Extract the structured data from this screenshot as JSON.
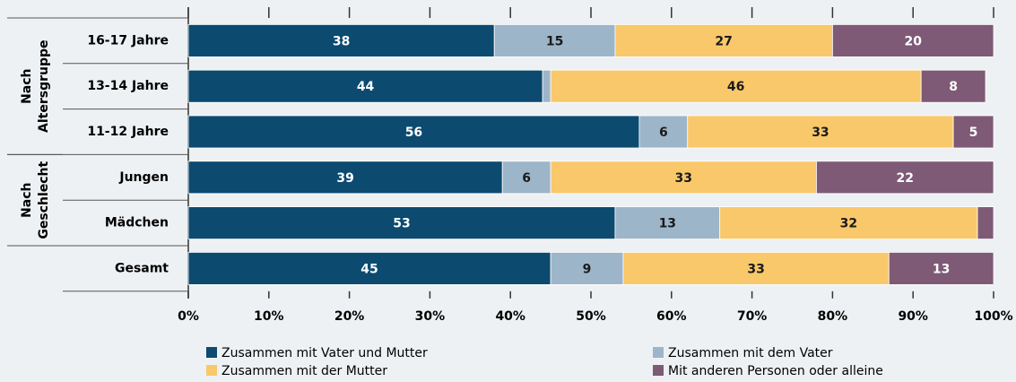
{
  "chart_data": {
    "type": "stacked-barh",
    "categories": [
      "16-17 Jahre",
      "13-14 Jahre",
      "11-12 Jahre",
      "Jungen",
      "Mädchen",
      "Gesamt"
    ],
    "groups": [
      {
        "lines": [
          "Nach",
          "Altersgruppe"
        ],
        "members": [
          "16-17 Jahre",
          "13-14 Jahre",
          "11-12 Jahre"
        ]
      },
      {
        "lines": [
          "Nach",
          "Geschlecht"
        ],
        "members": [
          "Jungen",
          "Mädchen"
        ]
      }
    ],
    "series": [
      {
        "name": "Zusammen mit Vater und Mutter",
        "color": "#0c4a70",
        "label_color": "#ffffff",
        "values": [
          38,
          44,
          56,
          39,
          53,
          45
        ]
      },
      {
        "name": "Zusammen mit dem Vater",
        "color": "#9db5c9",
        "label_color": "#1a1a1a",
        "values": [
          15,
          1,
          6,
          6,
          13,
          9
        ]
      },
      {
        "name": "Zusammen mit der Mutter",
        "color": "#f8c86a",
        "label_color": "#1a1a1a",
        "values": [
          27,
          46,
          33,
          33,
          32,
          33
        ]
      },
      {
        "name": "Mit anderen Personen oder alleine",
        "color": "#7e5a76",
        "label_color": "#ffffff",
        "values": [
          20,
          8,
          5,
          22,
          2,
          13
        ]
      }
    ],
    "xlim": [
      0,
      100
    ],
    "xticks": [
      {
        "value": 0,
        "label": "0%"
      },
      {
        "value": 10,
        "label": "10%"
      },
      {
        "value": 20,
        "label": "20%"
      },
      {
        "value": 30,
        "label": "30%"
      },
      {
        "value": 40,
        "label": "40%"
      },
      {
        "value": 50,
        "label": "50%"
      },
      {
        "value": 60,
        "label": "60%"
      },
      {
        "value": 70,
        "label": "70%"
      },
      {
        "value": 80,
        "label": "80%"
      },
      {
        "value": 90,
        "label": "90%"
      },
      {
        "value": 100,
        "label": "100%"
      }
    ]
  }
}
